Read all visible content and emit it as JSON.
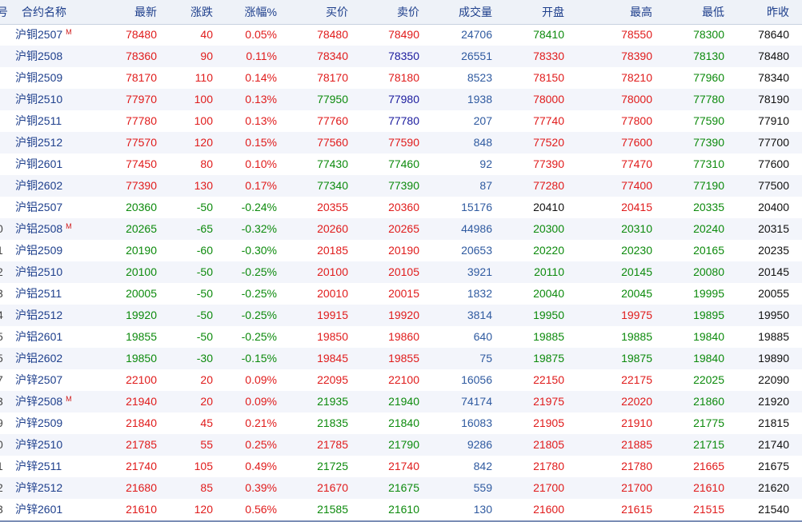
{
  "headers": {
    "idx": "号",
    "name": "合约名称",
    "last": "最新",
    "chg": "涨跌",
    "pct": "涨幅%",
    "bid": "买价",
    "ask": "卖价",
    "vol": "成交量",
    "open": "开盘",
    "high": "最高",
    "low": "最低",
    "prev": "昨收"
  },
  "colors": {
    "up": "#e01b1b",
    "down": "#0c8a0c",
    "volume": "#2f5aa0",
    "ask_equal": "#1b1b9e",
    "neutral": "#111111",
    "header_bg": "#eef2f8",
    "alt_row_bg": "#f3f5fb"
  },
  "rows": [
    {
      "idx": "",
      "name": "沪铜2507",
      "main": "M",
      "last": "78480",
      "chg": "40",
      "pct": "0.05%",
      "bid": "78480",
      "ask": "78490",
      "vol": "24706",
      "open": "78410",
      "high": "78550",
      "low": "78300",
      "prev": "78640",
      "c": {
        "last": "red",
        "chg": "red",
        "pct": "red",
        "bid": "red",
        "ask": "red",
        "open": "green",
        "high": "red",
        "low": "green"
      }
    },
    {
      "idx": "",
      "name": "沪铜2508",
      "main": "",
      "last": "78360",
      "chg": "90",
      "pct": "0.11%",
      "bid": "78340",
      "ask": "78350",
      "vol": "26551",
      "open": "78330",
      "high": "78390",
      "low": "78130",
      "prev": "78480",
      "c": {
        "last": "red",
        "chg": "red",
        "pct": "red",
        "bid": "red",
        "ask": "navy",
        "open": "red",
        "high": "red",
        "low": "green"
      }
    },
    {
      "idx": "",
      "name": "沪铜2509",
      "main": "",
      "last": "78170",
      "chg": "110",
      "pct": "0.14%",
      "bid": "78170",
      "ask": "78180",
      "vol": "8523",
      "open": "78150",
      "high": "78210",
      "low": "77960",
      "prev": "78340",
      "c": {
        "last": "red",
        "chg": "red",
        "pct": "red",
        "bid": "red",
        "ask": "red",
        "open": "red",
        "high": "red",
        "low": "green"
      }
    },
    {
      "idx": "",
      "name": "沪铜2510",
      "main": "",
      "last": "77970",
      "chg": "100",
      "pct": "0.13%",
      "bid": "77950",
      "ask": "77980",
      "vol": "1938",
      "open": "78000",
      "high": "78000",
      "low": "77780",
      "prev": "78190",
      "c": {
        "last": "red",
        "chg": "red",
        "pct": "red",
        "bid": "green",
        "ask": "navy",
        "open": "red",
        "high": "red",
        "low": "green"
      }
    },
    {
      "idx": "",
      "name": "沪铜2511",
      "main": "",
      "last": "77780",
      "chg": "100",
      "pct": "0.13%",
      "bid": "77760",
      "ask": "77780",
      "vol": "207",
      "open": "77740",
      "high": "77800",
      "low": "77590",
      "prev": "77910",
      "c": {
        "last": "red",
        "chg": "red",
        "pct": "red",
        "bid": "red",
        "ask": "navy",
        "open": "red",
        "high": "red",
        "low": "green"
      }
    },
    {
      "idx": "",
      "name": "沪铜2512",
      "main": "",
      "last": "77570",
      "chg": "120",
      "pct": "0.15%",
      "bid": "77560",
      "ask": "77590",
      "vol": "848",
      "open": "77520",
      "high": "77600",
      "low": "77390",
      "prev": "77700",
      "c": {
        "last": "red",
        "chg": "red",
        "pct": "red",
        "bid": "red",
        "ask": "red",
        "open": "red",
        "high": "red",
        "low": "green"
      }
    },
    {
      "idx": "",
      "name": "沪铜2601",
      "main": "",
      "last": "77450",
      "chg": "80",
      "pct": "0.10%",
      "bid": "77430",
      "ask": "77460",
      "vol": "92",
      "open": "77390",
      "high": "77470",
      "low": "77310",
      "prev": "77600",
      "c": {
        "last": "red",
        "chg": "red",
        "pct": "red",
        "bid": "green",
        "ask": "green",
        "open": "red",
        "high": "red",
        "low": "green"
      }
    },
    {
      "idx": "",
      "name": "沪铜2602",
      "main": "",
      "last": "77390",
      "chg": "130",
      "pct": "0.17%",
      "bid": "77340",
      "ask": "77390",
      "vol": "87",
      "open": "77280",
      "high": "77400",
      "low": "77190",
      "prev": "77500",
      "c": {
        "last": "red",
        "chg": "red",
        "pct": "red",
        "bid": "green",
        "ask": "green",
        "open": "red",
        "high": "red",
        "low": "green"
      }
    },
    {
      "idx": "",
      "name": "沪铝2507",
      "main": "",
      "last": "20360",
      "chg": "-50",
      "pct": "-0.24%",
      "bid": "20355",
      "ask": "20360",
      "vol": "15176",
      "open": "20410",
      "high": "20415",
      "low": "20335",
      "prev": "20400",
      "c": {
        "last": "green",
        "chg": "green",
        "pct": "green",
        "bid": "red",
        "ask": "red",
        "open": "black",
        "high": "red",
        "low": "green"
      }
    },
    {
      "idx": "0",
      "name": "沪铝2508",
      "main": "M",
      "last": "20265",
      "chg": "-65",
      "pct": "-0.32%",
      "bid": "20260",
      "ask": "20265",
      "vol": "44986",
      "open": "20300",
      "high": "20310",
      "low": "20240",
      "prev": "20315",
      "c": {
        "last": "green",
        "chg": "green",
        "pct": "green",
        "bid": "red",
        "ask": "red",
        "open": "green",
        "high": "green",
        "low": "green"
      }
    },
    {
      "idx": "1",
      "name": "沪铝2509",
      "main": "",
      "last": "20190",
      "chg": "-60",
      "pct": "-0.30%",
      "bid": "20185",
      "ask": "20190",
      "vol": "20653",
      "open": "20220",
      "high": "20230",
      "low": "20165",
      "prev": "20235",
      "c": {
        "last": "green",
        "chg": "green",
        "pct": "green",
        "bid": "red",
        "ask": "red",
        "open": "green",
        "high": "green",
        "low": "green"
      }
    },
    {
      "idx": "2",
      "name": "沪铝2510",
      "main": "",
      "last": "20100",
      "chg": "-50",
      "pct": "-0.25%",
      "bid": "20100",
      "ask": "20105",
      "vol": "3921",
      "open": "20110",
      "high": "20145",
      "low": "20080",
      "prev": "20145",
      "c": {
        "last": "green",
        "chg": "green",
        "pct": "green",
        "bid": "red",
        "ask": "red",
        "open": "green",
        "high": "green",
        "low": "green"
      }
    },
    {
      "idx": "3",
      "name": "沪铝2511",
      "main": "",
      "last": "20005",
      "chg": "-50",
      "pct": "-0.25%",
      "bid": "20010",
      "ask": "20015",
      "vol": "1832",
      "open": "20040",
      "high": "20045",
      "low": "19995",
      "prev": "20055",
      "c": {
        "last": "green",
        "chg": "green",
        "pct": "green",
        "bid": "red",
        "ask": "red",
        "open": "green",
        "high": "green",
        "low": "green"
      }
    },
    {
      "idx": "4",
      "name": "沪铝2512",
      "main": "",
      "last": "19920",
      "chg": "-50",
      "pct": "-0.25%",
      "bid": "19915",
      "ask": "19920",
      "vol": "3814",
      "open": "19950",
      "high": "19975",
      "low": "19895",
      "prev": "19950",
      "c": {
        "last": "green",
        "chg": "green",
        "pct": "green",
        "bid": "red",
        "ask": "red",
        "open": "green",
        "high": "red",
        "low": "green"
      }
    },
    {
      "idx": "5",
      "name": "沪铝2601",
      "main": "",
      "last": "19855",
      "chg": "-50",
      "pct": "-0.25%",
      "bid": "19850",
      "ask": "19860",
      "vol": "640",
      "open": "19885",
      "high": "19885",
      "low": "19840",
      "prev": "19885",
      "c": {
        "last": "green",
        "chg": "green",
        "pct": "green",
        "bid": "red",
        "ask": "red",
        "open": "green",
        "high": "green",
        "low": "green"
      }
    },
    {
      "idx": "5",
      "name": "沪铝2602",
      "main": "",
      "last": "19850",
      "chg": "-30",
      "pct": "-0.15%",
      "bid": "19845",
      "ask": "19855",
      "vol": "75",
      "open": "19875",
      "high": "19875",
      "low": "19840",
      "prev": "19890",
      "c": {
        "last": "green",
        "chg": "green",
        "pct": "green",
        "bid": "red",
        "ask": "red",
        "open": "green",
        "high": "green",
        "low": "green"
      }
    },
    {
      "idx": "7",
      "name": "沪锌2507",
      "main": "",
      "last": "22100",
      "chg": "20",
      "pct": "0.09%",
      "bid": "22095",
      "ask": "22100",
      "vol": "16056",
      "open": "22150",
      "high": "22175",
      "low": "22025",
      "prev": "22090",
      "c": {
        "last": "red",
        "chg": "red",
        "pct": "red",
        "bid": "red",
        "ask": "red",
        "open": "red",
        "high": "red",
        "low": "green"
      }
    },
    {
      "idx": "3",
      "name": "沪锌2508",
      "main": "M",
      "last": "21940",
      "chg": "20",
      "pct": "0.09%",
      "bid": "21935",
      "ask": "21940",
      "vol": "74174",
      "open": "21975",
      "high": "22020",
      "low": "21860",
      "prev": "21920",
      "c": {
        "last": "red",
        "chg": "red",
        "pct": "red",
        "bid": "green",
        "ask": "green",
        "open": "red",
        "high": "red",
        "low": "green"
      }
    },
    {
      "idx": "9",
      "name": "沪锌2509",
      "main": "",
      "last": "21840",
      "chg": "45",
      "pct": "0.21%",
      "bid": "21835",
      "ask": "21840",
      "vol": "16083",
      "open": "21905",
      "high": "21910",
      "low": "21775",
      "prev": "21815",
      "c": {
        "last": "red",
        "chg": "red",
        "pct": "red",
        "bid": "green",
        "ask": "green",
        "open": "red",
        "high": "red",
        "low": "green"
      }
    },
    {
      "idx": "0",
      "name": "沪锌2510",
      "main": "",
      "last": "21785",
      "chg": "55",
      "pct": "0.25%",
      "bid": "21785",
      "ask": "21790",
      "vol": "9286",
      "open": "21805",
      "high": "21885",
      "low": "21715",
      "prev": "21740",
      "c": {
        "last": "red",
        "chg": "red",
        "pct": "red",
        "bid": "red",
        "ask": "green",
        "open": "red",
        "high": "red",
        "low": "green"
      }
    },
    {
      "idx": "1",
      "name": "沪锌2511",
      "main": "",
      "last": "21740",
      "chg": "105",
      "pct": "0.49%",
      "bid": "21725",
      "ask": "21740",
      "vol": "842",
      "open": "21780",
      "high": "21780",
      "low": "21665",
      "prev": "21675",
      "c": {
        "last": "red",
        "chg": "red",
        "pct": "red",
        "bid": "green",
        "ask": "red",
        "open": "red",
        "high": "red",
        "low": "red"
      }
    },
    {
      "idx": "2",
      "name": "沪锌2512",
      "main": "",
      "last": "21680",
      "chg": "85",
      "pct": "0.39%",
      "bid": "21670",
      "ask": "21675",
      "vol": "559",
      "open": "21700",
      "high": "21700",
      "low": "21610",
      "prev": "21620",
      "c": {
        "last": "red",
        "chg": "red",
        "pct": "red",
        "bid": "red",
        "ask": "green",
        "open": "red",
        "high": "red",
        "low": "red"
      }
    },
    {
      "idx": "3",
      "name": "沪锌2601",
      "main": "",
      "last": "21610",
      "chg": "120",
      "pct": "0.56%",
      "bid": "21585",
      "ask": "21610",
      "vol": "130",
      "open": "21600",
      "high": "21615",
      "low": "21515",
      "prev": "21540",
      "c": {
        "last": "red",
        "chg": "red",
        "pct": "red",
        "bid": "green",
        "ask": "green",
        "open": "red",
        "high": "red",
        "low": "red"
      }
    }
  ]
}
